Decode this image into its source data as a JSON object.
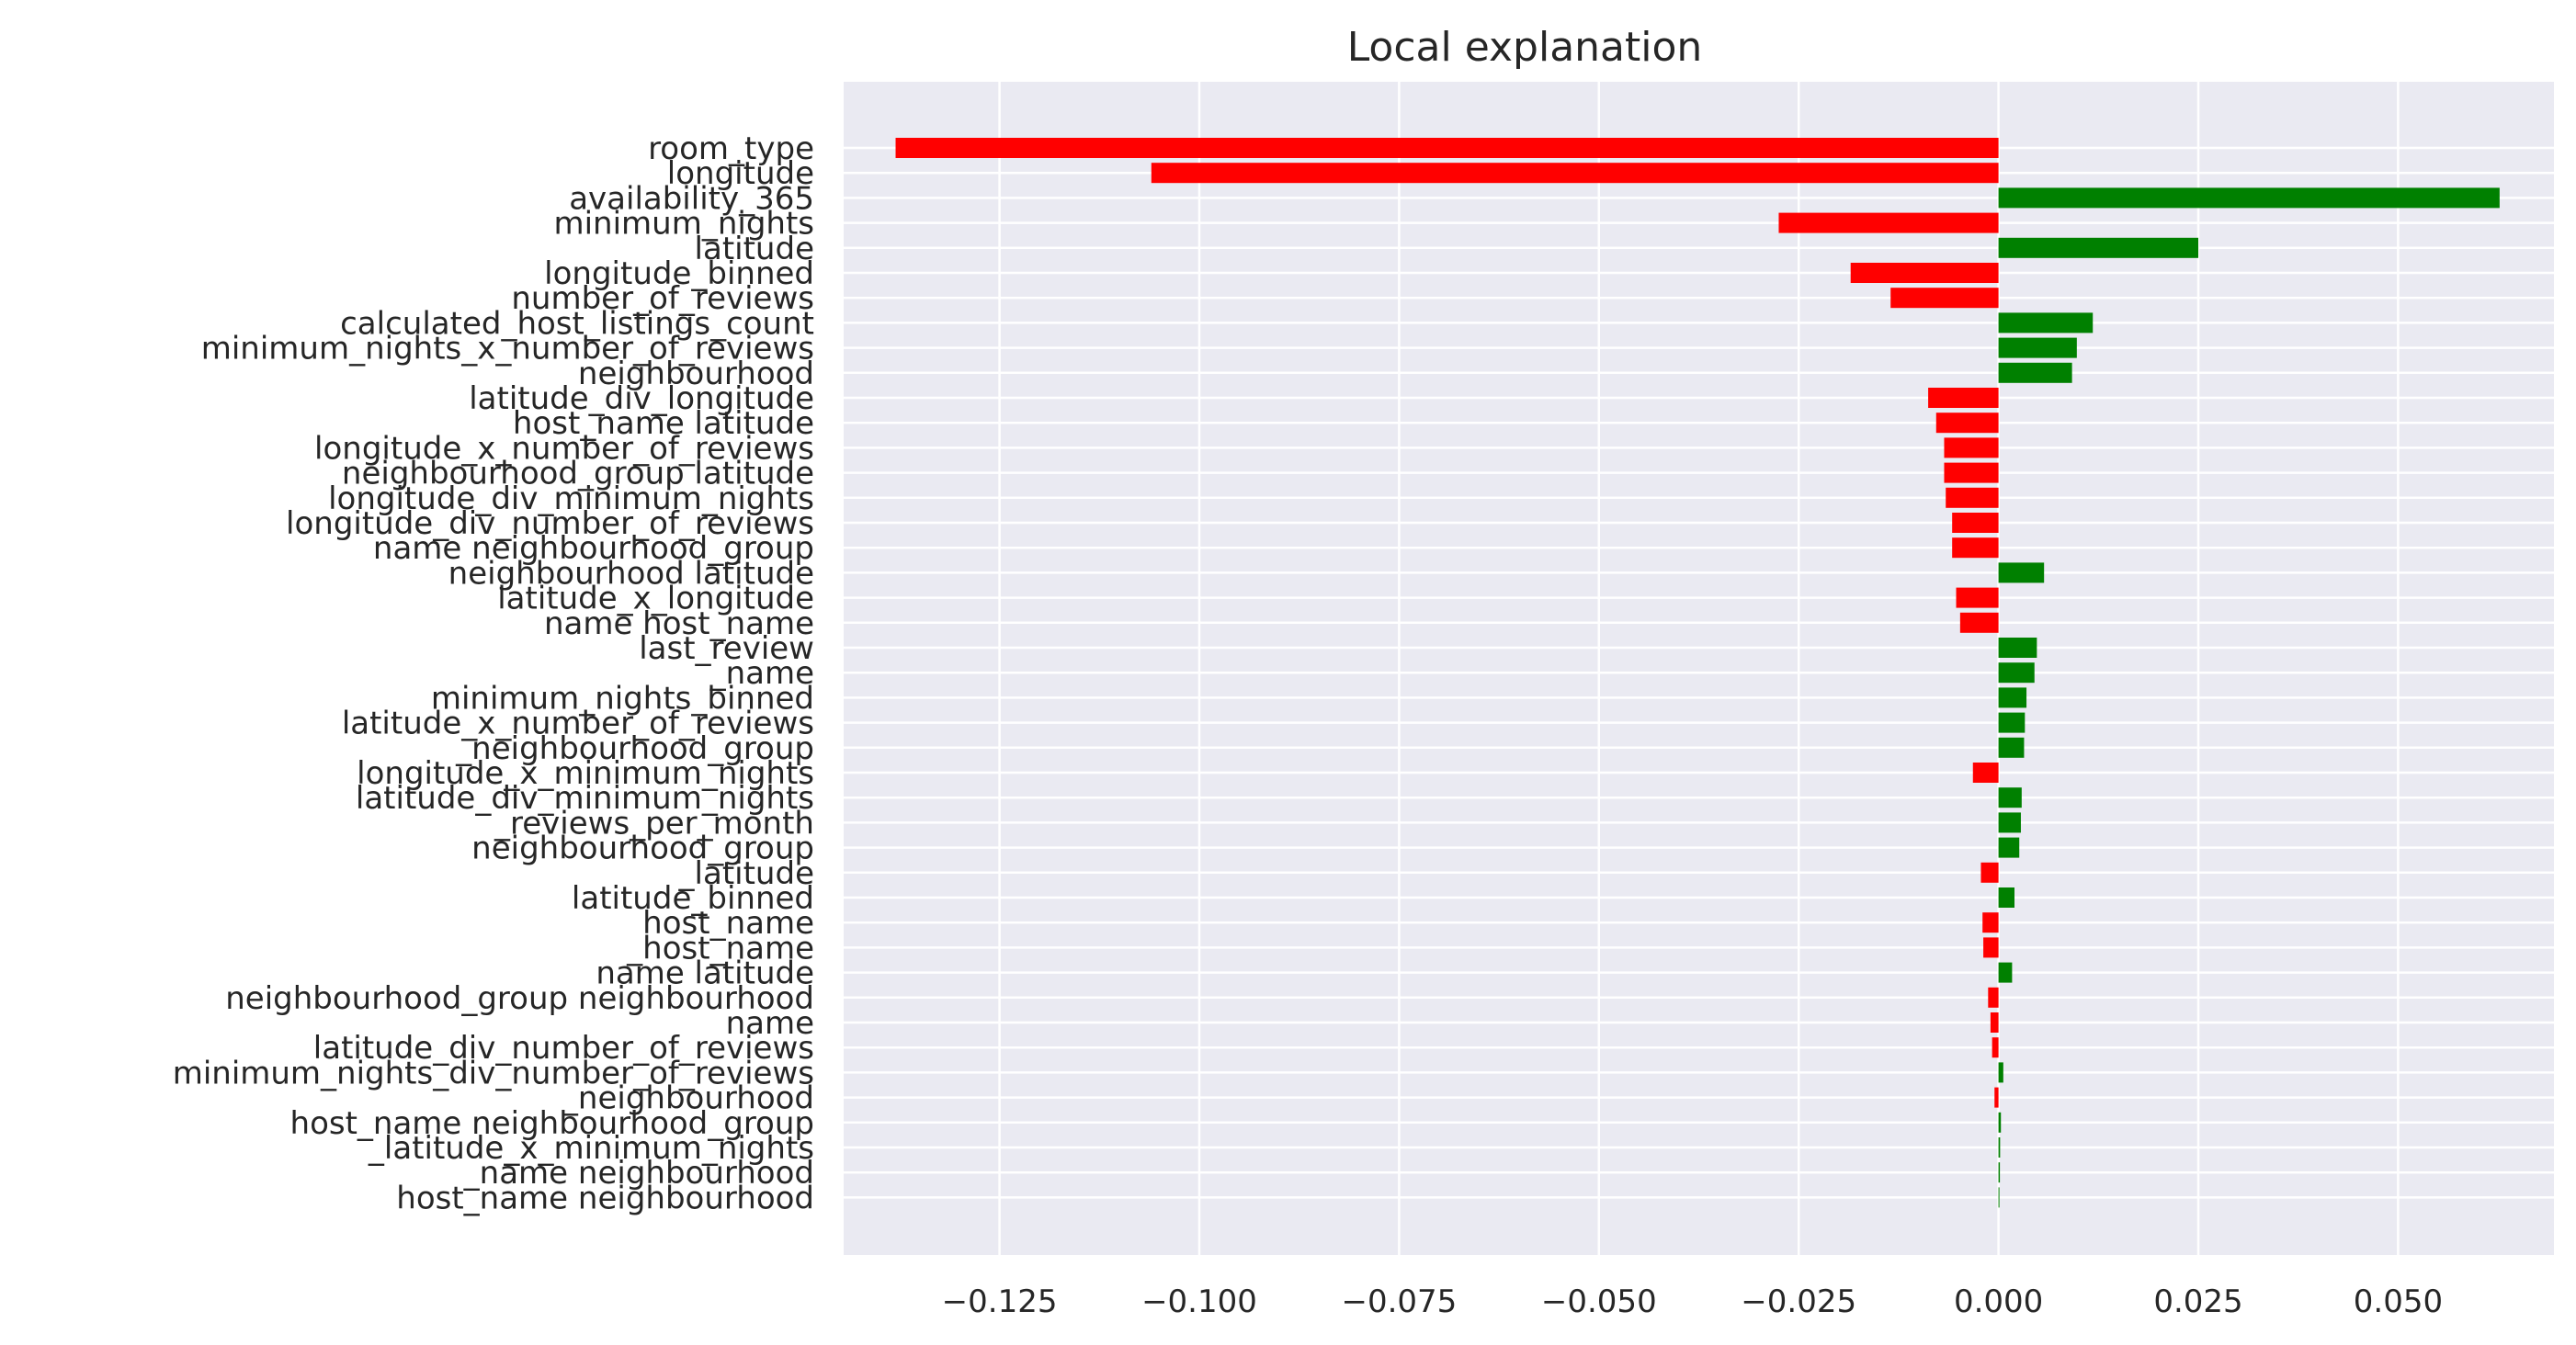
{
  "chart_data": {
    "type": "bar",
    "orientation": "horizontal",
    "title": "Local explanation",
    "xlabel": "",
    "ylabel": "",
    "xlim": [
      -0.1445,
      0.0695
    ],
    "xticks": [
      -0.125,
      -0.1,
      -0.075,
      -0.05,
      -0.025,
      0.0,
      0.025,
      0.05
    ],
    "xtick_labels": [
      "−0.125",
      "−0.100",
      "−0.075",
      "−0.050",
      "−0.025",
      "0.000",
      "0.025",
      "0.050"
    ],
    "grid": true,
    "positive_color": "#008000",
    "negative_color": "#ff0000",
    "background_color": "#eaeaf2",
    "categories": [
      "room_type",
      "longitude",
      "availability_365",
      "minimum_nights",
      "latitude",
      "longitude_binned",
      "number_of_reviews",
      "calculated_host_listings_count",
      "minimum_nights_x_number_of_reviews",
      "neighbourhood",
      "latitude_div_longitude",
      "host_name latitude",
      "longitude_x_number_of_reviews",
      "neighbourhood_group latitude",
      "longitude_div_minimum_nights",
      "longitude_div_number_of_reviews",
      "name neighbourhood_group",
      "neighbourhood latitude",
      "latitude_x_longitude",
      "name host_name",
      "last_review",
      "_name",
      "minimum_nights_binned",
      "latitude_x_number_of_reviews",
      "_neighbourhood_group",
      "longitude_x_minimum_nights",
      "latitude_div_minimum_nights",
      "_reviews_per_month",
      "neighbourhood_group",
      "_latitude",
      "latitude_binned",
      "host_name",
      "_host_name",
      "name latitude",
      "neighbourhood_group neighbourhood",
      "name",
      "latitude_div_number_of_reviews",
      "minimum_nights_div_number_of_reviews",
      "_neighbourhood",
      "host_name neighbourhood_group",
      "_latitude_x_minimum_nights",
      "_name neighbourhood",
      "host_name neighbourhood"
    ],
    "values": [
      -0.138,
      -0.106,
      0.0627,
      -0.0275,
      0.025,
      -0.0185,
      -0.0135,
      0.0118,
      0.0098,
      0.0092,
      -0.0088,
      -0.0078,
      -0.0068,
      -0.0068,
      -0.0066,
      -0.0058,
      -0.0058,
      0.0057,
      -0.0053,
      -0.0048,
      0.0048,
      0.0045,
      0.0035,
      0.0033,
      0.0032,
      -0.0032,
      0.0029,
      0.0028,
      0.0026,
      -0.0022,
      0.002,
      -0.002,
      -0.0019,
      0.0017,
      -0.0013,
      -0.001,
      -0.0008,
      0.0006,
      -0.0005,
      0.0003,
      0.0002,
      0.0001,
      0.0
    ]
  }
}
